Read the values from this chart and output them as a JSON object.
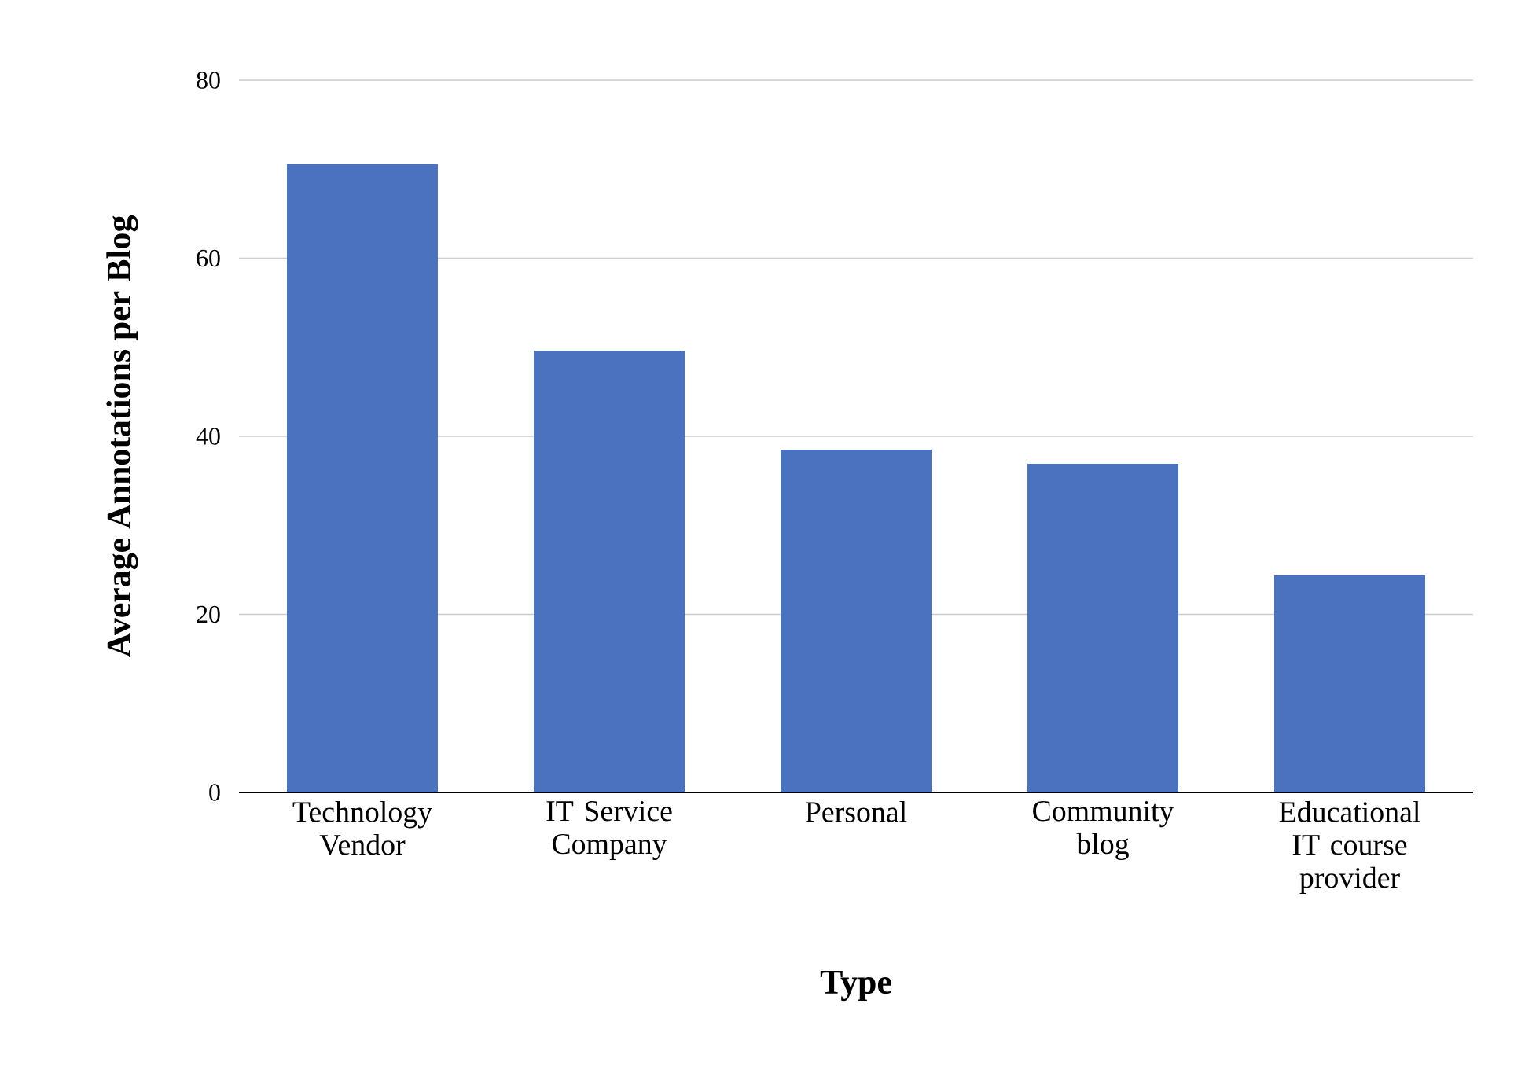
{
  "chart_data": {
    "type": "bar",
    "categories": [
      "Technology Vendor",
      "IT Service Company",
      "Personal",
      "Community blog",
      "Educational IT course provider"
    ],
    "values": [
      70.6,
      49.6,
      38.5,
      36.9,
      24.4
    ],
    "color": "#4a72bf",
    "xlabel": "Type",
    "ylabel": "Average Annotations per Blog",
    "ylim": [
      0,
      80
    ],
    "yticks": [
      0,
      20,
      40,
      60,
      80
    ],
    "grid": "y"
  }
}
